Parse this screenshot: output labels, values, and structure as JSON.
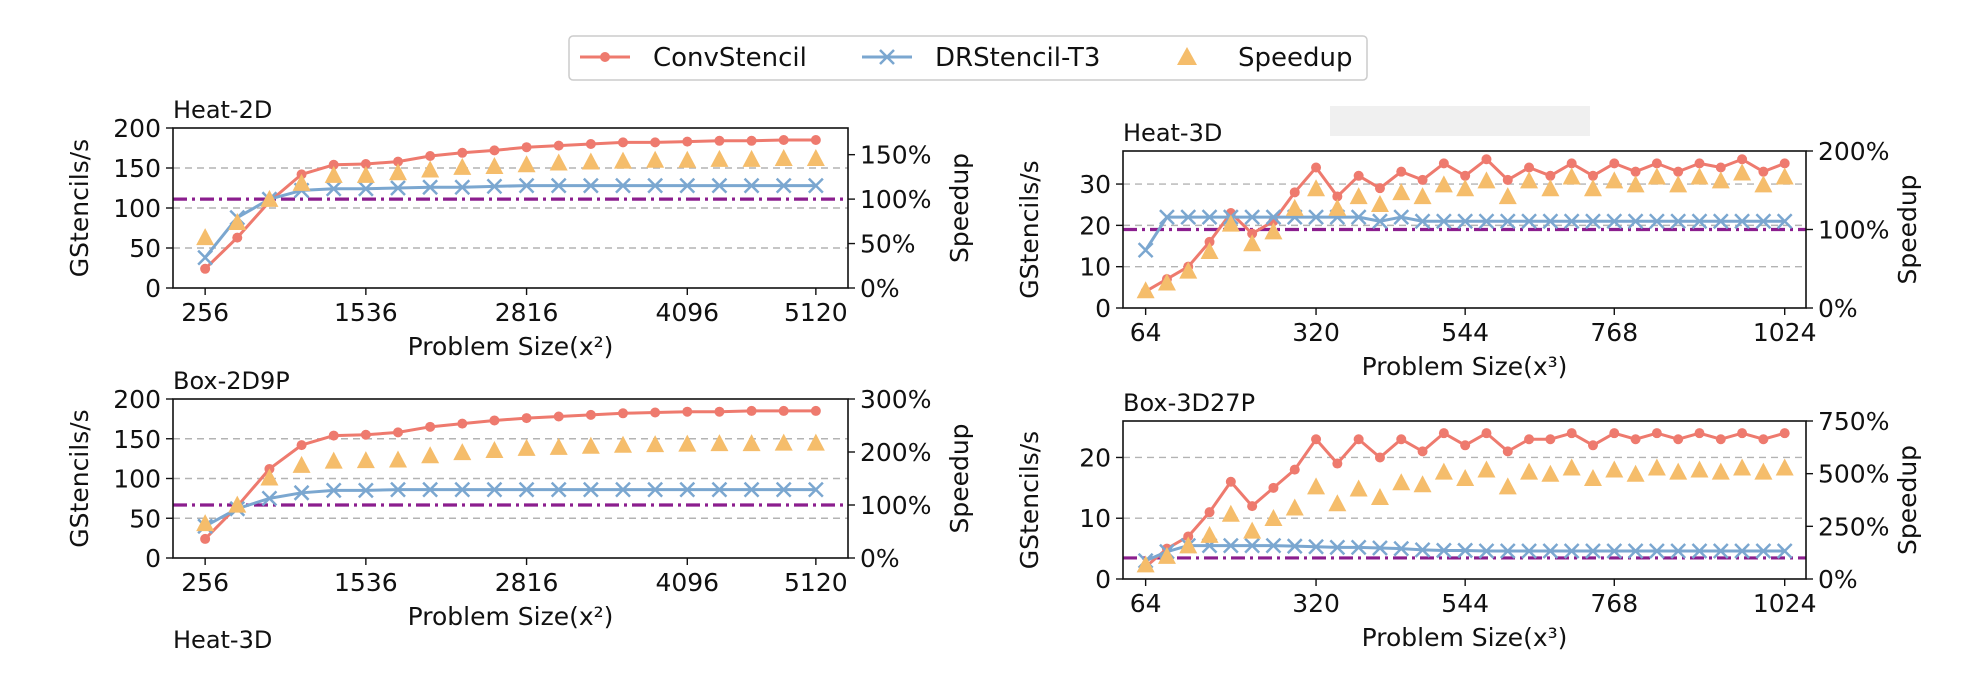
{
  "legend": {
    "position": "top-center",
    "items": [
      {
        "label": "ConvStencil",
        "color": "#ee7a6e",
        "marker": "dot"
      },
      {
        "label": "DRStencil-T3",
        "color": "#7ba7d0",
        "marker": "x"
      },
      {
        "label": "Speedup",
        "color": "#f5bd6b",
        "marker": "triangle"
      }
    ]
  },
  "colors": {
    "reference_line": "#8b1e8e"
  },
  "chart_data": [
    {
      "type": "line",
      "title": "Heat-2D",
      "xlabel": "Problem Size(x²)",
      "ylabel": "GStencils/s",
      "y2label": "Speedup",
      "x_ticks": [
        "256",
        "1536",
        "2816",
        "4096",
        "5120"
      ],
      "x_tick_values": [
        256,
        1536,
        2816,
        4096,
        5120
      ],
      "xlim": [
        0,
        5376
      ],
      "ylim": [
        0,
        200
      ],
      "y_ticks": [
        "0",
        "50",
        "100",
        "150",
        "200"
      ],
      "y_tick_values": [
        0,
        50,
        100,
        150,
        200
      ],
      "y2lim": [
        0,
        180
      ],
      "y2_ticks": [
        "0%",
        "50%",
        "100%",
        "150%"
      ],
      "y2_tick_values": [
        0,
        50,
        100,
        150
      ],
      "reference_line_y2": 100,
      "grid": "horizontal-dashed",
      "x": [
        256,
        512,
        768,
        1024,
        1280,
        1536,
        1792,
        2048,
        2304,
        2560,
        2816,
        3072,
        3328,
        3584,
        3840,
        4096,
        4352,
        4608,
        4864,
        5120
      ],
      "series": [
        {
          "name": "ConvStencil",
          "axis": "left",
          "values": [
            24,
            63,
            108,
            142,
            154,
            155,
            158,
            165,
            169,
            172,
            176,
            178,
            180,
            182,
            182,
            183,
            184,
            184,
            185,
            185
          ]
        },
        {
          "name": "DRStencil-T3",
          "axis": "left",
          "values": [
            38,
            88,
            111,
            122,
            124,
            124,
            125,
            126,
            126,
            127,
            128,
            128,
            128,
            128,
            128,
            128,
            128,
            128,
            128,
            128
          ]
        },
        {
          "name": "Speedup",
          "axis": "right",
          "values": [
            55,
            72,
            98,
            116,
            125,
            125,
            128,
            131,
            134,
            135,
            137,
            139,
            140,
            141,
            142,
            142,
            143,
            143,
            144,
            144
          ]
        }
      ]
    },
    {
      "type": "line",
      "title": "Box-2D9P",
      "xlabel": "Problem Size(x²)",
      "ylabel": "GStencils/s",
      "y2label": "Speedup",
      "x_ticks": [
        "256",
        "1536",
        "2816",
        "4096",
        "5120"
      ],
      "x_tick_values": [
        256,
        1536,
        2816,
        4096,
        5120
      ],
      "xlim": [
        0,
        5376
      ],
      "ylim": [
        0,
        200
      ],
      "y_ticks": [
        "0",
        "50",
        "100",
        "150",
        "200"
      ],
      "y_tick_values": [
        0,
        50,
        100,
        150,
        200
      ],
      "y2lim": [
        0,
        300
      ],
      "y2_ticks": [
        "0%",
        "100%",
        "200%",
        "300%"
      ],
      "y2_tick_values": [
        0,
        100,
        200,
        300
      ],
      "reference_line_y2": 100,
      "grid": "horizontal-dashed",
      "x": [
        256,
        512,
        768,
        1024,
        1280,
        1536,
        1792,
        2048,
        2304,
        2560,
        2816,
        3072,
        3328,
        3584,
        3840,
        4096,
        4352,
        4608,
        4864,
        5120
      ],
      "series": [
        {
          "name": "ConvStencil",
          "axis": "left",
          "values": [
            24,
            65,
            112,
            142,
            154,
            155,
            158,
            165,
            169,
            173,
            176,
            178,
            180,
            182,
            183,
            184,
            184,
            185,
            185,
            185
          ]
        },
        {
          "name": "DRStencil-T3",
          "axis": "left",
          "values": [
            40,
            62,
            75,
            82,
            85,
            85,
            86,
            86,
            86,
            86,
            86,
            86,
            86,
            86,
            86,
            86,
            86,
            86,
            86,
            86
          ]
        },
        {
          "name": "Speedup",
          "axis": "right",
          "values": [
            62,
            97,
            148,
            172,
            180,
            181,
            182,
            190,
            196,
            200,
            204,
            206,
            208,
            210,
            211,
            212,
            213,
            213,
            214,
            214
          ]
        }
      ]
    },
    {
      "type": "line",
      "title": "Heat-3D",
      "xlabel": "Problem Size(x³)",
      "ylabel": "GStencils/s",
      "y2label": "Speedup",
      "x_ticks": [
        "64",
        "320",
        "544",
        "768",
        "1024"
      ],
      "x_tick_values": [
        64,
        320,
        544,
        768,
        1024
      ],
      "xlim": [
        30,
        1056
      ],
      "ylim": [
        0,
        38
      ],
      "y_ticks": [
        "0",
        "10",
        "20",
        "30"
      ],
      "y_tick_values": [
        0,
        10,
        20,
        30
      ],
      "y2lim": [
        0,
        200
      ],
      "y2_ticks": [
        "0%",
        "100%",
        "200%"
      ],
      "y2_tick_values": [
        0,
        100,
        200
      ],
      "reference_line_y2": 100,
      "grid": "horizontal-dashed",
      "x": [
        64,
        96,
        128,
        160,
        192,
        224,
        256,
        288,
        320,
        352,
        384,
        416,
        448,
        480,
        512,
        544,
        576,
        608,
        640,
        672,
        704,
        736,
        768,
        800,
        832,
        864,
        896,
        928,
        960,
        992,
        1024
      ],
      "series": [
        {
          "name": "ConvStencil",
          "axis": "left",
          "values": [
            4,
            7,
            10,
            16,
            23,
            18,
            21,
            28,
            34,
            27,
            32,
            29,
            33,
            31,
            35,
            32,
            36,
            31,
            34,
            32,
            35,
            32,
            35,
            33,
            35,
            33,
            35,
            34,
            36,
            33,
            35
          ]
        },
        {
          "name": "DRStencil-T3",
          "axis": "left",
          "values": [
            14,
            22,
            22,
            22,
            22,
            22,
            22,
            22,
            22,
            22,
            22,
            21,
            22,
            21,
            21,
            21,
            21,
            21,
            21,
            21,
            21,
            21,
            21,
            21,
            21,
            21,
            21,
            21,
            21,
            21,
            21
          ]
        },
        {
          "name": "Speedup",
          "axis": "right",
          "values": [
            20,
            30,
            45,
            70,
            105,
            80,
            95,
            125,
            150,
            125,
            140,
            130,
            145,
            140,
            155,
            150,
            160,
            140,
            160,
            150,
            165,
            150,
            160,
            155,
            165,
            155,
            165,
            160,
            170,
            155,
            165
          ]
        }
      ]
    },
    {
      "type": "line",
      "title": "Box-3D27P",
      "xlabel": "Problem Size(x³)",
      "ylabel": "GStencils/s",
      "y2label": "Speedup",
      "x_ticks": [
        "64",
        "320",
        "544",
        "768",
        "1024"
      ],
      "x_tick_values": [
        64,
        320,
        544,
        768,
        1024
      ],
      "xlim": [
        30,
        1056
      ],
      "ylim": [
        0,
        26
      ],
      "y_ticks": [
        "0",
        "10",
        "20"
      ],
      "y_tick_values": [
        0,
        10,
        20
      ],
      "y2lim": [
        0,
        750
      ],
      "y2_ticks": [
        "0%",
        "250%",
        "500%",
        "750%"
      ],
      "y2_tick_values": [
        0,
        250,
        500,
        750
      ],
      "reference_line_y2": 100,
      "grid": "horizontal-dashed",
      "x": [
        64,
        96,
        128,
        160,
        192,
        224,
        256,
        288,
        320,
        352,
        384,
        416,
        448,
        480,
        512,
        544,
        576,
        608,
        640,
        672,
        704,
        736,
        768,
        800,
        832,
        864,
        896,
        928,
        960,
        992,
        1024
      ],
      "series": [
        {
          "name": "ConvStencil",
          "axis": "left",
          "values": [
            2,
            5,
            7,
            11,
            16,
            12,
            15,
            18,
            23,
            19,
            23,
            20,
            23,
            21,
            24,
            22,
            24,
            21,
            23,
            23,
            24,
            22,
            24,
            23,
            24,
            23,
            24,
            23,
            24,
            23,
            24
          ]
        },
        {
          "name": "DRStencil-T3",
          "axis": "left",
          "values": [
            3,
            4.5,
            5.5,
            5.5,
            5.5,
            5.5,
            5.5,
            5.4,
            5.3,
            5.2,
            5.2,
            5.1,
            5.0,
            4.8,
            4.7,
            4.7,
            4.6,
            4.6,
            4.6,
            4.6,
            4.6,
            4.6,
            4.6,
            4.6,
            4.6,
            4.6,
            4.6,
            4.6,
            4.6,
            4.6,
            4.6
          ]
        },
        {
          "name": "Speedup",
          "axis": "right",
          "values": [
            60,
            100,
            150,
            200,
            300,
            220,
            280,
            330,
            430,
            350,
            420,
            380,
            450,
            440,
            500,
            470,
            510,
            430,
            500,
            490,
            520,
            470,
            510,
            490,
            520,
            500,
            510,
            500,
            520,
            500,
            520
          ]
        }
      ]
    }
  ],
  "cutoff_panel_title": "Heat-3D"
}
